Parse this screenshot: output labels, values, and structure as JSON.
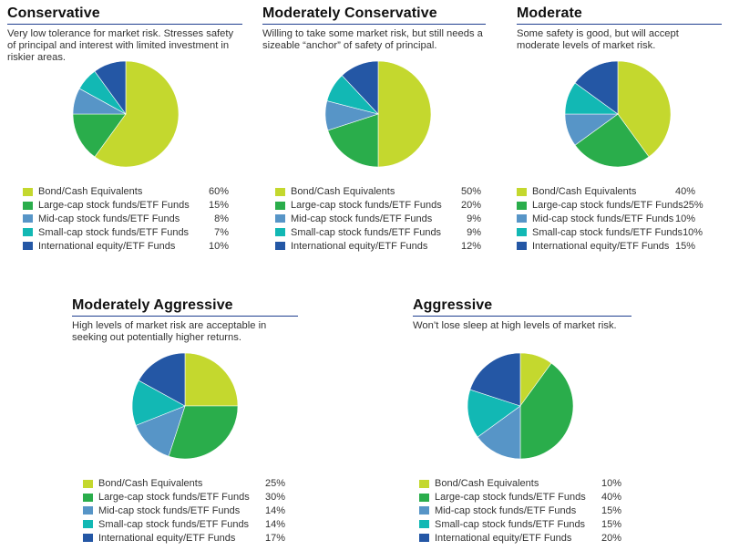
{
  "legend_colors": [
    "#c4d82e",
    "#2aad4b",
    "#5795c7",
    "#12b8b4",
    "#2457a5"
  ],
  "chart_data": [
    {
      "type": "pie",
      "title": "Conservative",
      "description": "Very low tolerance for market risk. Stresses safety of principal and interest with limited investment in riskier areas.",
      "categories": [
        "Bond/Cash Equivalents",
        "Large-cap stock funds/ETF Funds",
        "Mid-cap stock funds/ETF Funds",
        "Small-cap stock funds/ETF Funds",
        "International equity/ETF Funds"
      ],
      "values": [
        60,
        15,
        8,
        7,
        10
      ],
      "labels": [
        "60%",
        "15%",
        "8%",
        "7%",
        "10%"
      ]
    },
    {
      "type": "pie",
      "title": "Moderately Conservative",
      "description": "Willing to take some market risk, but still needs a sizeable “anchor” of safety of principal.",
      "categories": [
        "Bond/Cash Equivalents",
        "Large-cap stock funds/ETF Funds",
        "Mid-cap stock funds/ETF Funds",
        "Small-cap stock funds/ETF Funds",
        "International equity/ETF Funds"
      ],
      "values": [
        50,
        20,
        9,
        9,
        12
      ],
      "labels": [
        "50%",
        "20%",
        "9%",
        "9%",
        "12%"
      ]
    },
    {
      "type": "pie",
      "title": "Moderate",
      "description": "Some safety is good, but will accept moderate levels of market risk.",
      "categories": [
        "Bond/Cash Equivalents",
        "Large-cap stock funds/ETF Funds",
        "Mid-cap stock funds/ETF Funds",
        "Small-cap stock funds/ETF Funds",
        "International equity/ETF Funds"
      ],
      "values": [
        40,
        25,
        10,
        10,
        15
      ],
      "labels": [
        "40%",
        "25%",
        "10%",
        "10%",
        "15%"
      ]
    },
    {
      "type": "pie",
      "title": "Moderately Aggressive",
      "description": "High levels of market risk are acceptable in seeking out potentially higher returns.",
      "categories": [
        "Bond/Cash Equivalents",
        "Large-cap stock funds/ETF Funds",
        "Mid-cap stock funds/ETF Funds",
        "Small-cap stock funds/ETF Funds",
        "International equity/ETF Funds"
      ],
      "values": [
        25,
        30,
        14,
        14,
        17
      ],
      "labels": [
        "25%",
        "30%",
        "14%",
        "14%",
        "17%"
      ]
    },
    {
      "type": "pie",
      "title": "Aggressive",
      "description": "Won’t lose sleep at high levels of market risk.",
      "categories": [
        "Bond/Cash Equivalents",
        "Large-cap stock funds/ETF Funds",
        "Mid-cap stock funds/ETF Funds",
        "Small-cap stock funds/ETF Funds",
        "International equity/ETF Funds"
      ],
      "values": [
        10,
        40,
        15,
        15,
        20
      ],
      "labels": [
        "10%",
        "40%",
        "15%",
        "15%",
        "20%"
      ]
    }
  ]
}
